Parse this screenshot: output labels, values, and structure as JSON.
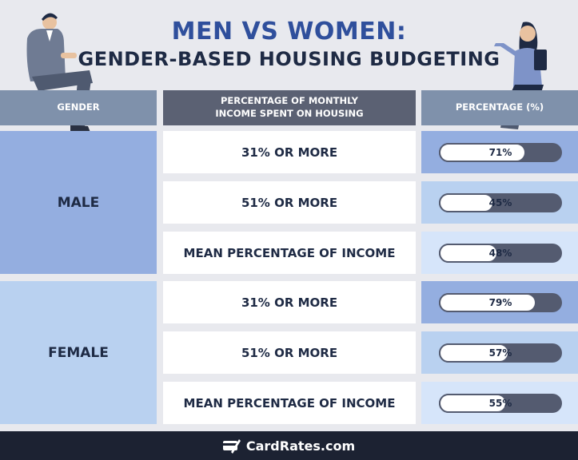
{
  "title": {
    "line1": "MEN VS WOMEN:",
    "line2": "GENDER-BASED HOUSING BUDGETING"
  },
  "headers": {
    "gender": "GENDER",
    "metric_line1": "PERCENTAGE OF MONTHLY",
    "metric_line2": "INCOME SPENT ON HOUSING",
    "percentage": "PERCENTAGE (%)"
  },
  "groups": [
    {
      "label": "MALE",
      "color": "#94aee0"
    },
    {
      "label": "FEMALE",
      "color": "#b9d1f0"
    }
  ],
  "footer": {
    "brand": "CardRates.com"
  },
  "colors": {
    "title_blue": "#2f4f9c",
    "navy": "#1e2a44",
    "header_slate": "#7f91ab",
    "header_dark": "#5b6173",
    "bar_dark": "#545b70",
    "footer_bg": "#1c2232"
  },
  "icons": [
    "cardrates-logo-icon",
    "man-illustration",
    "woman-illustration"
  ],
  "chart_data": {
    "type": "table",
    "columns": [
      "GENDER",
      "PERCENTAGE OF MONTHLY INCOME SPENT ON HOUSING",
      "PERCENTAGE (%)"
    ],
    "rows": [
      {
        "gender": "MALE",
        "metric": "31% OR MORE",
        "value": 71,
        "label": "71%",
        "cell_color": "#94aee0"
      },
      {
        "gender": "MALE",
        "metric": "51% OR MORE",
        "value": 45,
        "label": "45%",
        "cell_color": "#b9d1f0"
      },
      {
        "gender": "MALE",
        "metric": "MEAN PERCENTAGE OF INCOME",
        "value": 48,
        "label": "48%",
        "cell_color": "#d6e5fa"
      },
      {
        "gender": "FEMALE",
        "metric": "31% OR MORE",
        "value": 79,
        "label": "79%",
        "cell_color": "#94aee0"
      },
      {
        "gender": "FEMALE",
        "metric": "51% OR MORE",
        "value": 57,
        "label": "57%",
        "cell_color": "#b9d1f0"
      },
      {
        "gender": "FEMALE",
        "metric": "MEAN PERCENTAGE OF INCOME",
        "value": 55,
        "label": "55%",
        "cell_color": "#d6e5fa"
      }
    ],
    "ylim": [
      0,
      100
    ]
  }
}
